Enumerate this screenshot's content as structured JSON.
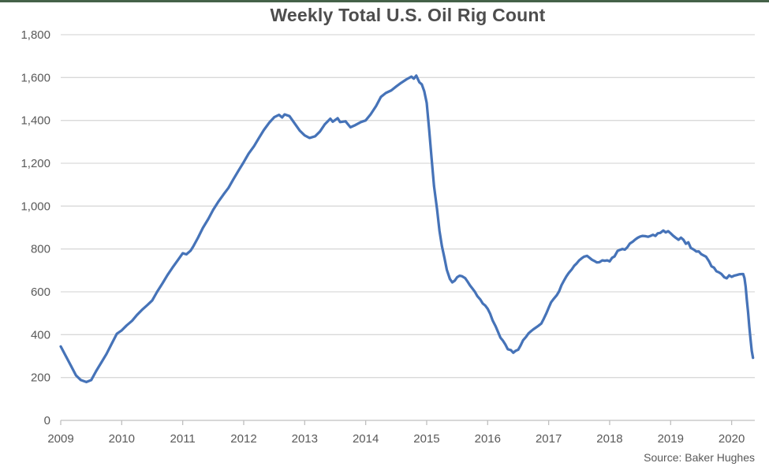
{
  "title": "Weekly Total U.S. Oil Rig Count",
  "source": "Source: Baker Hughes",
  "colors": {
    "line": "#4673B8",
    "gridline": "#D9D9D9",
    "axis": "#BFBFBF",
    "title_text": "#4D4D4D",
    "label_text": "#595959",
    "top_border": "#456249",
    "background": "#FFFFFF"
  },
  "chart_data": {
    "type": "line",
    "title": "Weekly Total U.S. Oil Rig Count",
    "xlabel": "",
    "ylabel": "",
    "source": "Source: Baker Hughes",
    "legend": "none",
    "grid": "horizontal",
    "xlim": [
      2009,
      2020.38
    ],
    "ylim": [
      0,
      1800
    ],
    "y_tick_step": 200,
    "x_ticks": [
      2009,
      2010,
      2011,
      2012,
      2013,
      2014,
      2015,
      2016,
      2017,
      2018,
      2019,
      2020
    ],
    "series": [
      {
        "name": "U.S. oil rig count",
        "points": [
          [
            2009.0,
            345
          ],
          [
            2009.08,
            302
          ],
          [
            2009.17,
            254
          ],
          [
            2009.25,
            210
          ],
          [
            2009.33,
            188
          ],
          [
            2009.42,
            179
          ],
          [
            2009.5,
            188
          ],
          [
            2009.58,
            230
          ],
          [
            2009.67,
            272
          ],
          [
            2009.75,
            310
          ],
          [
            2009.83,
            355
          ],
          [
            2009.92,
            404
          ],
          [
            2010.0,
            420
          ],
          [
            2010.08,
            443
          ],
          [
            2010.17,
            465
          ],
          [
            2010.25,
            492
          ],
          [
            2010.33,
            515
          ],
          [
            2010.42,
            538
          ],
          [
            2010.5,
            560
          ],
          [
            2010.58,
            600
          ],
          [
            2010.67,
            640
          ],
          [
            2010.75,
            678
          ],
          [
            2010.83,
            712
          ],
          [
            2010.92,
            748
          ],
          [
            2011.0,
            780
          ],
          [
            2011.06,
            775
          ],
          [
            2011.13,
            792
          ],
          [
            2011.17,
            810
          ],
          [
            2011.25,
            852
          ],
          [
            2011.33,
            898
          ],
          [
            2011.42,
            940
          ],
          [
            2011.5,
            983
          ],
          [
            2011.58,
            1019
          ],
          [
            2011.67,
            1055
          ],
          [
            2011.75,
            1085
          ],
          [
            2011.83,
            1125
          ],
          [
            2011.92,
            1168
          ],
          [
            2012.0,
            1205
          ],
          [
            2012.08,
            1245
          ],
          [
            2012.17,
            1280
          ],
          [
            2012.25,
            1318
          ],
          [
            2012.33,
            1355
          ],
          [
            2012.42,
            1390
          ],
          [
            2012.5,
            1415
          ],
          [
            2012.58,
            1426
          ],
          [
            2012.63,
            1414
          ],
          [
            2012.67,
            1428
          ],
          [
            2012.75,
            1420
          ],
          [
            2012.83,
            1388
          ],
          [
            2012.92,
            1352
          ],
          [
            2013.0,
            1330
          ],
          [
            2013.08,
            1318
          ],
          [
            2013.17,
            1326
          ],
          [
            2013.25,
            1348
          ],
          [
            2013.33,
            1382
          ],
          [
            2013.42,
            1408
          ],
          [
            2013.46,
            1394
          ],
          [
            2013.54,
            1410
          ],
          [
            2013.58,
            1392
          ],
          [
            2013.67,
            1396
          ],
          [
            2013.75,
            1368
          ],
          [
            2013.83,
            1378
          ],
          [
            2013.92,
            1392
          ],
          [
            2014.0,
            1400
          ],
          [
            2014.08,
            1428
          ],
          [
            2014.17,
            1467
          ],
          [
            2014.25,
            1510
          ],
          [
            2014.33,
            1528
          ],
          [
            2014.42,
            1540
          ],
          [
            2014.5,
            1558
          ],
          [
            2014.58,
            1575
          ],
          [
            2014.67,
            1592
          ],
          [
            2014.75,
            1604
          ],
          [
            2014.79,
            1595
          ],
          [
            2014.83,
            1609
          ],
          [
            2014.88,
            1578
          ],
          [
            2014.92,
            1568
          ],
          [
            2014.96,
            1536
          ],
          [
            2015.0,
            1482
          ],
          [
            2015.04,
            1358
          ],
          [
            2015.08,
            1223
          ],
          [
            2015.12,
            1093
          ],
          [
            2015.17,
            986
          ],
          [
            2015.21,
            885
          ],
          [
            2015.25,
            813
          ],
          [
            2015.29,
            760
          ],
          [
            2015.33,
            703
          ],
          [
            2015.38,
            660
          ],
          [
            2015.42,
            644
          ],
          [
            2015.46,
            652
          ],
          [
            2015.5,
            668
          ],
          [
            2015.54,
            675
          ],
          [
            2015.58,
            673
          ],
          [
            2015.63,
            664
          ],
          [
            2015.67,
            648
          ],
          [
            2015.71,
            630
          ],
          [
            2015.75,
            615
          ],
          [
            2015.79,
            600
          ],
          [
            2015.83,
            580
          ],
          [
            2015.88,
            564
          ],
          [
            2015.92,
            545
          ],
          [
            2015.96,
            536
          ],
          [
            2016.0,
            521
          ],
          [
            2016.04,
            498
          ],
          [
            2016.08,
            467
          ],
          [
            2016.13,
            439
          ],
          [
            2016.17,
            413
          ],
          [
            2016.21,
            386
          ],
          [
            2016.25,
            372
          ],
          [
            2016.29,
            354
          ],
          [
            2016.33,
            332
          ],
          [
            2016.38,
            328
          ],
          [
            2016.42,
            316
          ],
          [
            2016.46,
            325
          ],
          [
            2016.5,
            330
          ],
          [
            2016.54,
            350
          ],
          [
            2016.58,
            374
          ],
          [
            2016.63,
            390
          ],
          [
            2016.67,
            406
          ],
          [
            2016.71,
            416
          ],
          [
            2016.75,
            425
          ],
          [
            2016.79,
            433
          ],
          [
            2016.83,
            441
          ],
          [
            2016.88,
            452
          ],
          [
            2016.92,
            474
          ],
          [
            2016.96,
            498
          ],
          [
            2017.0,
            525
          ],
          [
            2017.04,
            551
          ],
          [
            2017.08,
            566
          ],
          [
            2017.13,
            583
          ],
          [
            2017.17,
            602
          ],
          [
            2017.21,
            631
          ],
          [
            2017.25,
            652
          ],
          [
            2017.29,
            672
          ],
          [
            2017.33,
            688
          ],
          [
            2017.38,
            705
          ],
          [
            2017.42,
            722
          ],
          [
            2017.46,
            733
          ],
          [
            2017.5,
            747
          ],
          [
            2017.54,
            756
          ],
          [
            2017.58,
            764
          ],
          [
            2017.63,
            768
          ],
          [
            2017.67,
            759
          ],
          [
            2017.71,
            750
          ],
          [
            2017.75,
            744
          ],
          [
            2017.79,
            737
          ],
          [
            2017.83,
            738
          ],
          [
            2017.88,
            747
          ],
          [
            2017.92,
            745
          ],
          [
            2017.96,
            747
          ],
          [
            2018.0,
            742
          ],
          [
            2018.04,
            759
          ],
          [
            2018.08,
            765
          ],
          [
            2018.13,
            791
          ],
          [
            2018.17,
            796
          ],
          [
            2018.21,
            800
          ],
          [
            2018.25,
            797
          ],
          [
            2018.29,
            808
          ],
          [
            2018.33,
            825
          ],
          [
            2018.38,
            834
          ],
          [
            2018.42,
            844
          ],
          [
            2018.46,
            852
          ],
          [
            2018.5,
            858
          ],
          [
            2018.54,
            861
          ],
          [
            2018.58,
            860
          ],
          [
            2018.63,
            857
          ],
          [
            2018.67,
            861
          ],
          [
            2018.71,
            866
          ],
          [
            2018.75,
            861
          ],
          [
            2018.79,
            873
          ],
          [
            2018.83,
            875
          ],
          [
            2018.88,
            886
          ],
          [
            2018.92,
            877
          ],
          [
            2018.96,
            883
          ],
          [
            2019.0,
            873
          ],
          [
            2019.04,
            862
          ],
          [
            2019.08,
            853
          ],
          [
            2019.13,
            843
          ],
          [
            2019.17,
            853
          ],
          [
            2019.21,
            843
          ],
          [
            2019.25,
            824
          ],
          [
            2019.29,
            831
          ],
          [
            2019.33,
            805
          ],
          [
            2019.38,
            797
          ],
          [
            2019.42,
            788
          ],
          [
            2019.46,
            789
          ],
          [
            2019.5,
            776
          ],
          [
            2019.54,
            770
          ],
          [
            2019.58,
            764
          ],
          [
            2019.63,
            742
          ],
          [
            2019.67,
            719
          ],
          [
            2019.71,
            713
          ],
          [
            2019.75,
            696
          ],
          [
            2019.79,
            691
          ],
          [
            2019.83,
            684
          ],
          [
            2019.88,
            668
          ],
          [
            2019.92,
            663
          ],
          [
            2019.96,
            677
          ],
          [
            2020.0,
            670
          ],
          [
            2020.04,
            675
          ],
          [
            2020.08,
            678
          ],
          [
            2020.13,
            682
          ],
          [
            2020.17,
            683
          ],
          [
            2020.19,
            683
          ],
          [
            2020.21,
            664
          ],
          [
            2020.23,
            624
          ],
          [
            2020.25,
            562
          ],
          [
            2020.27,
            504
          ],
          [
            2020.29,
            438
          ],
          [
            2020.31,
            378
          ],
          [
            2020.33,
            325
          ],
          [
            2020.35,
            292
          ]
        ]
      }
    ]
  }
}
